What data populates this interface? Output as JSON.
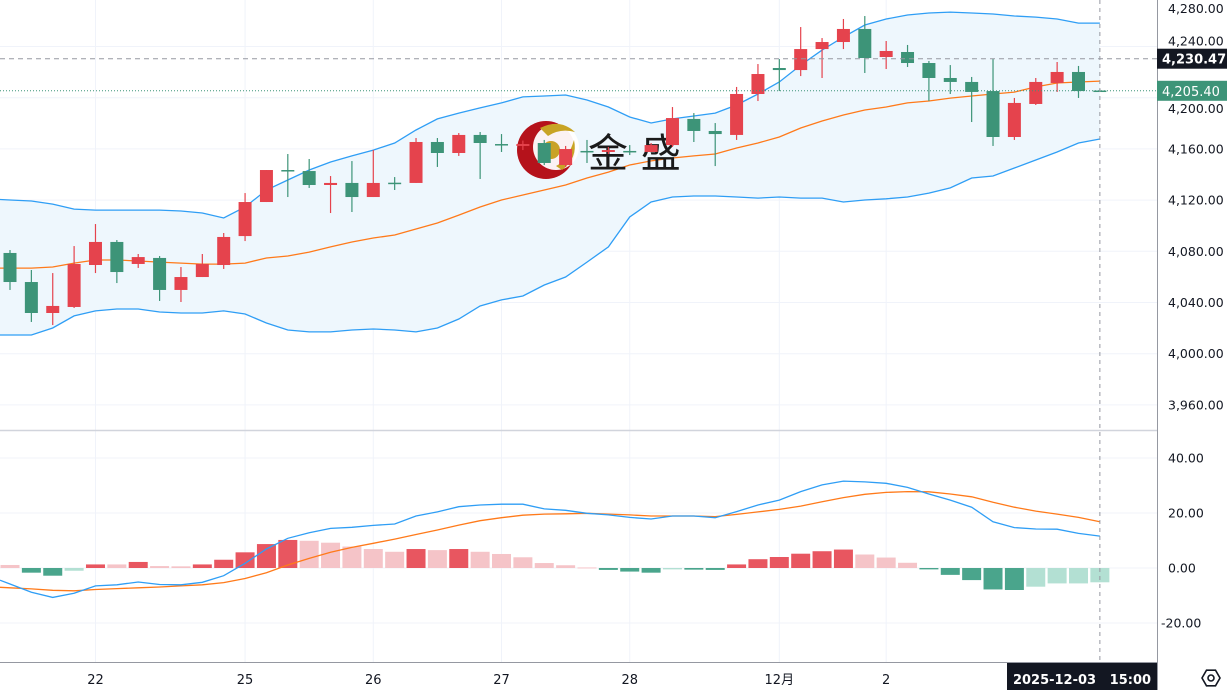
{
  "chart_data": [
    {
      "type": "candlestick",
      "overlay": "bollinger",
      "colors": {
        "up": "#e5434d",
        "down": "#3d9478",
        "upper_band": "#2f9ef5",
        "lower_band": "#2f9ef5",
        "middle_band": "#ff7a1a",
        "band_fill": "#eef7fd"
      },
      "y_ticks": [
        "4,280.00",
        "4,240.00",
        "4,200.00",
        "4,160.00",
        "4,120.00",
        "4,080.00",
        "4,040.00",
        "4,000.00",
        "3,960.00"
      ],
      "y_tick_values": [
        4280,
        4240,
        4200,
        4160,
        4120,
        4080,
        4040,
        4000,
        3960
      ],
      "ylim": [
        3946,
        4276
      ],
      "grid": true,
      "last_price": {
        "value": 4205.4,
        "label": "4,205.40",
        "color": "#3d9478"
      },
      "marked_price": {
        "value": 4230.47,
        "label": "4,230.47",
        "color": "#131722"
      },
      "ohlc": [
        [
          4078.7,
          4081.0,
          4049.8,
          4056.0
        ],
        [
          4056.0,
          4065.4,
          4024.8,
          4031.8
        ],
        [
          4031.8,
          4063.0,
          4022.4,
          4037.3
        ],
        [
          4036.5,
          4084.1,
          4035.7,
          4070.1
        ],
        [
          4069.3,
          4101.3,
          4063.0,
          4087.3
        ],
        [
          4087.3,
          4088.8,
          4055.2,
          4063.8
        ],
        [
          4070.1,
          4077.9,
          4067.0,
          4075.5
        ],
        [
          4074.8,
          4076.3,
          4041.2,
          4049.8
        ],
        [
          4049.8,
          4067.7,
          4040.4,
          4059.9
        ],
        [
          4059.9,
          4077.9,
          4059.9,
          4070.1
        ],
        [
          4069.3,
          4094.3,
          4066.2,
          4091.2
        ],
        [
          4091.9,
          4125.5,
          4088.0,
          4118.5
        ],
        [
          4118.5,
          4143.5,
          4118.5,
          4143.5
        ],
        [
          4143.5,
          4156.0,
          4122.4,
          4142.7
        ],
        [
          4142.7,
          4152.1,
          4129.5,
          4131.8
        ],
        [
          4131.8,
          4138.8,
          4109.9,
          4133.4
        ],
        [
          4133.4,
          4150.5,
          4110.7,
          4122.4
        ],
        [
          4122.4,
          4159.1,
          4122.4,
          4133.4
        ],
        [
          4133.6,
          4138.0,
          4127.9,
          4133.4
        ],
        [
          4133.4,
          4168.5,
          4133.4,
          4165.4
        ],
        [
          4165.4,
          4168.5,
          4145.9,
          4156.8
        ],
        [
          4156.8,
          4172.4,
          4154.5,
          4170.9
        ],
        [
          4170.9,
          4173.2,
          4136.5,
          4164.6
        ],
        [
          4163.8,
          4171.6,
          4157.6,
          4163.5
        ],
        [
          4162.3,
          4166.5,
          4159.1,
          4163.8
        ],
        [
          4164.6,
          4167.0,
          4147.4,
          4149.0
        ],
        [
          4147.4,
          4162.3,
          4145.9,
          4159.9
        ],
        [
          4158.4,
          4167.0,
          4149.0,
          4157.6
        ],
        [
          4157.6,
          4161.5,
          4156.0,
          4159.1
        ],
        [
          4158.4,
          4163.0,
          4155.2,
          4157.6
        ],
        [
          4157.6,
          4164.6,
          4157.6,
          4163.0
        ],
        [
          4163.0,
          4192.7,
          4161.5,
          4184.1
        ],
        [
          4183.4,
          4188.0,
          4165.4,
          4174.0
        ],
        [
          4174.0,
          4180.2,
          4146.6,
          4171.6
        ],
        [
          4170.9,
          4208.4,
          4167.0,
          4202.9
        ],
        [
          4202.9,
          4226.3,
          4197.4,
          4218.5
        ],
        [
          4223.2,
          4230.2,
          4205.2,
          4221.6
        ],
        [
          4221.6,
          4255.2,
          4216.9,
          4238.0
        ],
        [
          4238.0,
          4246.6,
          4215.4,
          4243.5
        ],
        [
          4243.5,
          4261.5,
          4238.0,
          4253.7
        ],
        [
          4253.7,
          4263.8,
          4219.3,
          4231.0
        ],
        [
          4231.8,
          4244.3,
          4222.4,
          4236.5
        ],
        [
          4235.7,
          4241.2,
          4224.0,
          4227.1
        ],
        [
          4227.1,
          4228.7,
          4197.4,
          4215.4
        ],
        [
          4215.4,
          4225.5,
          4202.9,
          4212.3
        ],
        [
          4212.3,
          4216.2,
          4181.0,
          4204.5
        ],
        [
          4205.2,
          4230.2,
          4162.3,
          4169.3
        ],
        [
          4169.3,
          4199.8,
          4167.0,
          4195.9
        ],
        [
          4195.1,
          4215.4,
          4194.3,
          4212.3
        ],
        [
          4211.5,
          4227.9,
          4204.5,
          4220.1
        ],
        [
          4220.1,
          4224.8,
          4199.8,
          4205.2
        ],
        [
          4205.6,
          4206.5,
          4204.8,
          4205.4
        ]
      ],
      "upper_band": [
        4120.1,
        4119.3,
        4116.9,
        4113.0,
        4112.2,
        4112.2,
        4112.2,
        4112.2,
        4111.5,
        4109.9,
        4106.0,
        4114.6,
        4127.9,
        4135.7,
        4143.5,
        4149.8,
        4154.5,
        4159.1,
        4164.6,
        4174.8,
        4183.4,
        4188.0,
        4192.0,
        4195.9,
        4200.6,
        4201.3,
        4202.1,
        4198.2,
        4192.7,
        4184.9,
        4180.2,
        4183.4,
        4185.7,
        4188.0,
        4194.3,
        4202.9,
        4212.3,
        4225.5,
        4237.2,
        4247.4,
        4256.8,
        4261.5,
        4264.6,
        4266.2,
        4266.9,
        4266.2,
        4265.4,
        4263.8,
        4263.0,
        4261.5,
        4258.3,
        4258.3
      ],
      "middle_band": [
        4066.9,
        4066.9,
        4067.7,
        4070.8,
        4073.2,
        4073.2,
        4072.4,
        4071.6,
        4070.8,
        4070.0,
        4070.0,
        4070.8,
        4074.8,
        4076.3,
        4079.4,
        4083.4,
        4087.3,
        4090.4,
        4092.7,
        4097.4,
        4102.1,
        4108.3,
        4114.6,
        4120.1,
        4124.0,
        4127.9,
        4131.8,
        4137.3,
        4141.9,
        4147.4,
        4150.6,
        4152.9,
        4154.5,
        4156.0,
        4160.7,
        4164.6,
        4169.3,
        4176.3,
        4181.8,
        4186.5,
        4190.4,
        4192.7,
        4195.9,
        4197.4,
        4199.7,
        4201.3,
        4202.9,
        4204.4,
        4208.4,
        4211.5,
        4212.3,
        4213.0
      ],
      "lower_band": [
        4014.6,
        4014.6,
        4020.1,
        4029.5,
        4033.4,
        4034.9,
        4034.9,
        4032.6,
        4031.8,
        4031.8,
        4033.4,
        4031.0,
        4024.0,
        4018.5,
        4017.0,
        4017.0,
        4018.5,
        4019.3,
        4018.5,
        4017.0,
        4020.1,
        4027.1,
        4037.3,
        4042.0,
        4045.1,
        4053.7,
        4059.9,
        4071.6,
        4083.4,
        4106.8,
        4118.5,
        4122.4,
        4123.2,
        4123.2,
        4122.4,
        4121.6,
        4122.4,
        4121.6,
        4121.6,
        4118.5,
        4120.1,
        4121.0,
        4122.4,
        4125.5,
        4129.5,
        4137.3,
        4138.8,
        4145.1,
        4151.3,
        4157.6,
        4164.6,
        4167.7
      ]
    },
    {
      "type": "bar+line",
      "indicator": "MACD",
      "colors": {
        "dif": "#2f9ef5",
        "dea": "#ff7a1a",
        "pos_rising": "#e85660",
        "pos_falling": "#f5c4c8",
        "neg_falling": "#4aa58c",
        "neg_rising": "#b3e0d3"
      },
      "y_ticks": [
        "40.00",
        "20.00",
        "0.00",
        "-20.00"
      ],
      "y_tick_values": [
        40,
        20,
        0,
        -20
      ],
      "ylim": [
        -34,
        50
      ],
      "histogram": [
        1.1,
        -1.7,
        -2.8,
        -1.0,
        1.3,
        1.3,
        2.2,
        0.7,
        0.6,
        1.3,
        3.0,
        5.7,
        8.7,
        10.2,
        9.9,
        9.2,
        7.8,
        6.9,
        5.9,
        6.9,
        6.5,
        6.9,
        5.9,
        5.1,
        3.9,
        1.8,
        1.0,
        0.2,
        -0.7,
        -1.3,
        -1.7,
        -0.5,
        -0.6,
        -0.7,
        1.3,
        3.2,
        4.0,
        5.2,
        6.1,
        6.7,
        4.9,
        3.8,
        1.9,
        -0.5,
        -2.5,
        -4.4,
        -7.8,
        -8.0,
        -6.8,
        -5.6,
        -5.6,
        -5.2
      ],
      "dif": [
        -5.8,
        -8.8,
        -10.7,
        -9.2,
        -6.5,
        -6.1,
        -5.1,
        -6.0,
        -6.1,
        -5.2,
        -2.8,
        1.7,
        6.9,
        10.8,
        12.8,
        14.4,
        14.8,
        15.5,
        16.0,
        18.9,
        20.4,
        22.3,
        22.9,
        23.2,
        23.2,
        21.5,
        21.0,
        19.9,
        19.3,
        18.4,
        17.8,
        18.9,
        18.9,
        18.3,
        20.5,
        22.9,
        24.7,
        27.8,
        30.2,
        31.6,
        31.3,
        30.8,
        29.3,
        26.9,
        24.7,
        22.1,
        16.8,
        14.7,
        14.2,
        14.1,
        12.6,
        11.6
      ],
      "dea": [
        -7.2,
        -7.6,
        -8.1,
        -8.3,
        -7.8,
        -7.5,
        -7.2,
        -6.9,
        -6.5,
        -6.1,
        -5.3,
        -3.8,
        -1.7,
        1.1,
        3.5,
        5.7,
        7.5,
        9.0,
        10.5,
        12.2,
        13.8,
        15.6,
        17.2,
        18.3,
        19.2,
        19.6,
        19.7,
        19.9,
        19.6,
        19.3,
        18.9,
        18.9,
        18.9,
        18.7,
        19.5,
        20.4,
        21.3,
        22.5,
        24.1,
        25.6,
        26.8,
        27.5,
        27.8,
        27.7,
        26.9,
        25.9,
        23.9,
        22.1,
        20.7,
        19.6,
        18.4,
        16.8
      ],
      "grid": true
    }
  ],
  "time_axis": {
    "ticks": [
      {
        "label": "22",
        "bar": 4
      },
      {
        "label": "25",
        "bar": 11
      },
      {
        "label": "26",
        "bar": 17
      },
      {
        "label": "27",
        "bar": 23
      },
      {
        "label": "28",
        "bar": 29
      },
      {
        "label": "12月",
        "bar": 36
      },
      {
        "label": "2",
        "bar": 41
      }
    ],
    "crosshair_label": "2025-12-03   15:00",
    "crosshair_bar": 51
  },
  "watermark": {
    "text": "金 盛",
    "icon": "jinsheng-logo-icon"
  },
  "controls": {
    "settings_icon": "gear-icon"
  }
}
